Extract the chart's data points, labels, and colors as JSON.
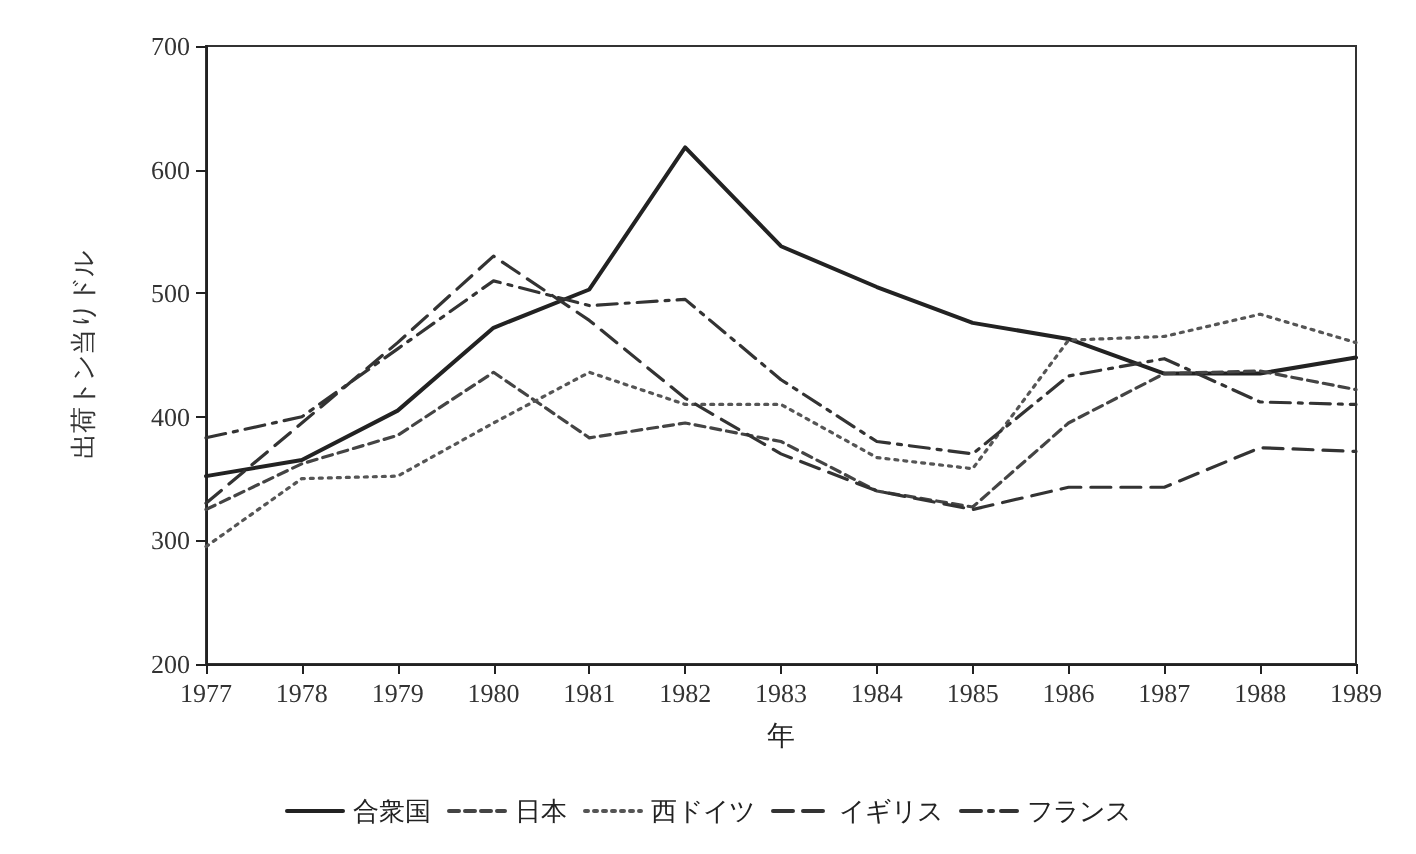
{
  "chart_data": {
    "type": "line",
    "xlabel": "年",
    "ylabel": "出荷トン当りドル",
    "x": [
      1977,
      1978,
      1979,
      1980,
      1981,
      1982,
      1983,
      1984,
      1985,
      1986,
      1987,
      1988,
      1989
    ],
    "xlim": [
      1977,
      1989
    ],
    "xticks": [
      1977,
      1978,
      1979,
      1980,
      1981,
      1982,
      1983,
      1984,
      1985,
      1986,
      1987,
      1988,
      1989
    ],
    "ylim": [
      200,
      700
    ],
    "yticks": [
      200,
      300,
      400,
      500,
      600,
      700
    ],
    "grid": false,
    "legend": "bottom",
    "marker": "none",
    "series": [
      {
        "name": "合衆国",
        "color": "#222222",
        "line_style": "solid",
        "values": [
          352,
          365,
          405,
          472,
          503,
          618,
          538,
          505,
          476,
          463,
          435,
          435,
          448
        ]
      },
      {
        "name": "日本",
        "color": "#444444",
        "line_style": "dashed",
        "values": [
          325,
          362,
          385,
          436,
          383,
          395,
          380,
          340,
          327,
          395,
          435,
          437,
          422
        ]
      },
      {
        "name": "西ドイツ",
        "color": "#555555",
        "line_style": "dotted",
        "values": [
          295,
          350,
          352,
          395,
          436,
          410,
          410,
          367,
          358,
          462,
          465,
          483,
          460
        ]
      },
      {
        "name": "イギリス",
        "color": "#333333",
        "line_style": "longdash",
        "values": [
          330,
          395,
          460,
          530,
          478,
          415,
          370,
          340,
          325,
          343,
          343,
          375,
          372
        ]
      },
      {
        "name": "フランス",
        "color": "#333333",
        "line_style": "dashdot",
        "values": [
          383,
          400,
          455,
          510,
          490,
          495,
          430,
          380,
          370,
          433,
          447,
          412,
          410
        ]
      }
    ]
  }
}
